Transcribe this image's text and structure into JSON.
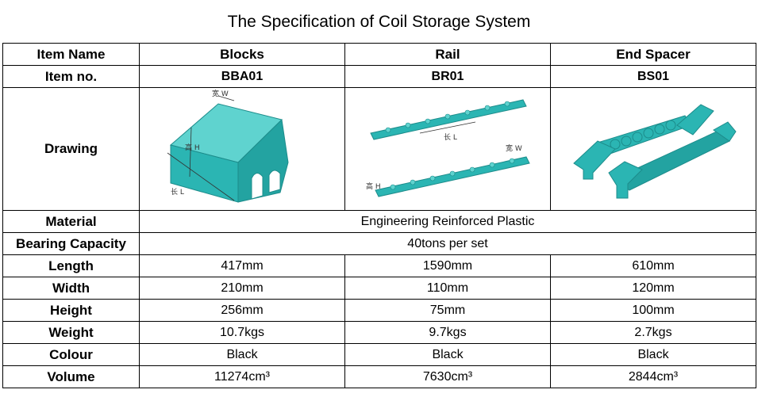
{
  "title": "The Specification of Coil Storage System",
  "colors": {
    "product": "#2bb5b3",
    "product_dark": "#1d8c8b",
    "product_light": "#5fd3cf"
  },
  "header": {
    "label": "Item Name",
    "columns": [
      "Blocks",
      "Rail",
      "End Spacer"
    ]
  },
  "item_no": {
    "label": "Item no.",
    "values": [
      "BBA01",
      "BR01",
      "BS01"
    ]
  },
  "drawing": {
    "label": "Drawing",
    "blocks": {
      "w": "宽 W",
      "h": "高 H",
      "l": "长 L"
    },
    "rail": {
      "l": "长 L",
      "w": "宽 W",
      "h": "高 H"
    }
  },
  "material": {
    "label": "Material",
    "value": "Engineering Reinforced Plastic"
  },
  "capacity": {
    "label": "Bearing Capacity",
    "value": "40tons per set"
  },
  "rows": [
    {
      "label": "Length",
      "values": [
        "417mm",
        "1590mm",
        "610mm"
      ]
    },
    {
      "label": "Width",
      "values": [
        "210mm",
        "110mm",
        "120mm"
      ]
    },
    {
      "label": "Height",
      "values": [
        "256mm",
        "75mm",
        "100mm"
      ]
    },
    {
      "label": "Weight",
      "values": [
        "10.7kgs",
        "9.7kgs",
        "2.7kgs"
      ]
    },
    {
      "label": "Colour",
      "values": [
        "Black",
        "Black",
        "Black"
      ]
    },
    {
      "label": "Volume",
      "values": [
        "11274cm³",
        "7630cm³",
        "2844cm³"
      ]
    }
  ]
}
